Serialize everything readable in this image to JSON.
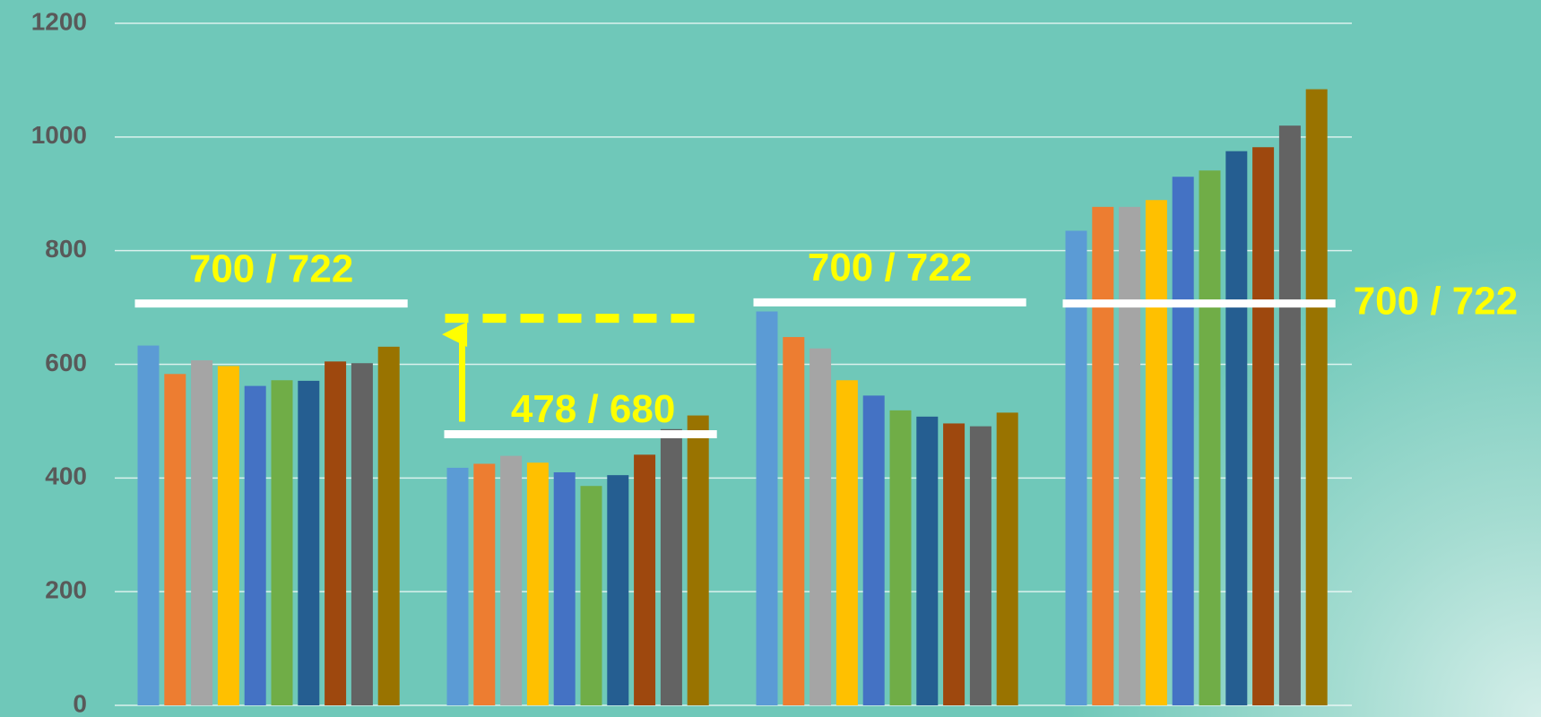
{
  "chart_data": {
    "type": "bar",
    "categories": [
      null,
      null,
      null,
      null
    ],
    "series": [
      {
        "color": "#5b9bd5",
        "values": [
          633,
          418,
          693,
          835
        ]
      },
      {
        "color": "#ed7d31",
        "values": [
          583,
          425,
          648,
          877
        ]
      },
      {
        "color": "#a5a5a5",
        "values": [
          607,
          439,
          628,
          877
        ]
      },
      {
        "color": "#ffc000",
        "values": [
          597,
          427,
          572,
          889
        ]
      },
      {
        "color": "#4472c4",
        "values": [
          562,
          410,
          545,
          930
        ]
      },
      {
        "color": "#70ad47",
        "values": [
          572,
          386,
          519,
          941
        ]
      },
      {
        "color": "#255e91",
        "values": [
          571,
          405,
          508,
          975
        ]
      },
      {
        "color": "#9e480e",
        "values": [
          605,
          441,
          496,
          982
        ]
      },
      {
        "color": "#636363",
        "values": [
          602,
          486,
          491,
          1020
        ]
      },
      {
        "color": "#997300",
        "values": [
          631,
          510,
          515,
          1084
        ]
      }
    ],
    "ylim": [
      0,
      1200
    ],
    "yticks": [
      0,
      200,
      400,
      600,
      800,
      1000,
      1200
    ],
    "grid": true,
    "annotations": [
      {
        "label": "700 / 722",
        "line": 707
      },
      {
        "label": "478 / 680",
        "line": 477,
        "target": 681
      },
      {
        "label": "700 / 722",
        "line": 709
      },
      {
        "label": "700 / 722",
        "line": 707
      }
    ]
  }
}
